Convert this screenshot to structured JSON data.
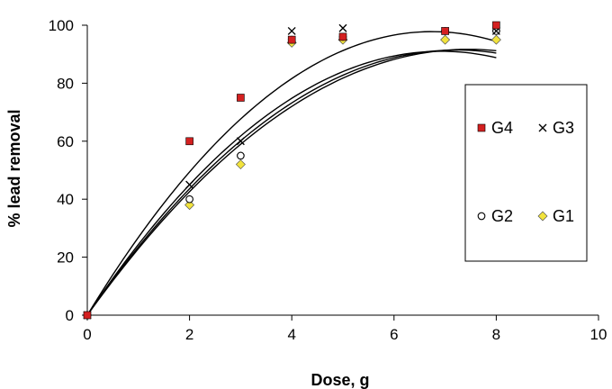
{
  "chart_data": {
    "type": "scatter",
    "title": "",
    "xlabel": "Dose, g",
    "ylabel": "% lead removal",
    "xlim": [
      0,
      10
    ],
    "ylim": [
      0,
      100
    ],
    "xticks": [
      0,
      2,
      4,
      6,
      8,
      10
    ],
    "yticks": [
      0,
      20,
      40,
      60,
      80,
      100
    ],
    "grid": false,
    "legend_position": "right",
    "series": [
      {
        "name": "G4",
        "marker": "filled-square",
        "color": "#d42020",
        "x": [
          0,
          2,
          3,
          4,
          5,
          7,
          8
        ],
        "y": [
          0,
          60,
          75,
          95,
          96,
          98,
          100
        ],
        "trend": [
          -2.15,
          29.0,
          0
        ]
      },
      {
        "name": "G3",
        "marker": "x",
        "color": "#000000",
        "x": [
          0,
          2,
          3,
          4,
          5,
          7,
          8
        ],
        "y": [
          0,
          45,
          60,
          98,
          99,
          98,
          98
        ],
        "trend": [
          -1.9,
          26.3,
          0
        ]
      },
      {
        "name": "G2",
        "marker": "open-circle",
        "color": "#000000",
        "x": [
          0,
          2,
          3,
          4,
          5,
          7,
          8
        ],
        "y": [
          0,
          40,
          55,
          95,
          96,
          98,
          98
        ],
        "trend": [
          -1.75,
          25.3,
          0
        ]
      },
      {
        "name": "G1",
        "marker": "filled-diamond",
        "color": "#f2e33c",
        "x": [
          0,
          2,
          3,
          4,
          5,
          7,
          8
        ],
        "y": [
          0,
          38,
          52,
          94,
          95,
          95,
          95
        ],
        "trend": [
          -1.65,
          24.6,
          0
        ]
      }
    ]
  }
}
